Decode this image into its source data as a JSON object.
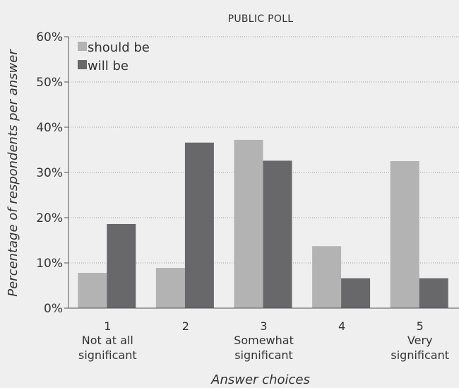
{
  "chart_data": {
    "type": "bar",
    "title": "PUBLIC POLL",
    "xlabel": "Answer choices",
    "ylabel": "Percentage of respondents per answer",
    "categories": [
      "1",
      "2",
      "3",
      "4",
      "5"
    ],
    "category_sublabels": [
      [
        "Not at all",
        "significant"
      ],
      [],
      [
        "Somewhat",
        "significant"
      ],
      [],
      [
        "Very",
        "significant"
      ]
    ],
    "series": [
      {
        "name": "should be",
        "color": "#b3b3b3",
        "values": [
          7.8,
          8.9,
          37.2,
          13.7,
          32.5
        ]
      },
      {
        "name": "will be",
        "color": "#68686a",
        "values": [
          18.6,
          36.6,
          32.6,
          6.6,
          6.6
        ]
      }
    ],
    "yticks": [
      "0%",
      "10%",
      "20%",
      "30%",
      "40%",
      "50%",
      "60%"
    ],
    "ylim": [
      0,
      60
    ],
    "grid": true,
    "legend_position": "top-left"
  }
}
